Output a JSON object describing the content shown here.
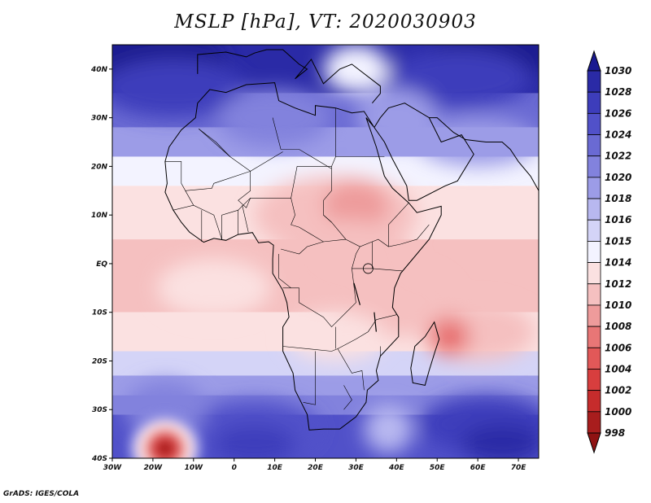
{
  "title": "MSLP [hPa], VT: 2020030903",
  "credit": "GrADS: IGES/COLA",
  "map": {
    "lon_range": [
      -30,
      75
    ],
    "lat_range": [
      -40,
      45
    ],
    "lon_ticks": [
      "30W",
      "20W",
      "10W",
      "0",
      "10E",
      "20E",
      "30E",
      "40E",
      "50E",
      "60E",
      "70E"
    ],
    "lat_ticks": [
      "40N",
      "30N",
      "20N",
      "10N",
      "EQ",
      "10S",
      "20S",
      "30S",
      "40S"
    ],
    "pressure_features": [
      {
        "name": "north-atlantic-high",
        "value": 1030,
        "lon": -20,
        "lat": 40
      },
      {
        "name": "eurasian-high",
        "value": 1030,
        "lon": 66,
        "lat": 43
      },
      {
        "name": "sahara-ridge",
        "value": 1018,
        "lon": 10,
        "lat": 28
      },
      {
        "name": "arabia-ridge",
        "value": 1018,
        "lon": 46,
        "lat": 25
      },
      {
        "name": "sudan-low",
        "value": 1008,
        "lon": 30,
        "lat": 11
      },
      {
        "name": "central-africa-trough",
        "value": 1010,
        "lon": 25,
        "lat": 0
      },
      {
        "name": "mozambique-channel-low",
        "value": 1006,
        "lon": 53,
        "lat": -15
      },
      {
        "name": "south-atlantic-low",
        "value": 998,
        "lon": -17,
        "lat": -38
      },
      {
        "name": "south-atlantic-high",
        "value": 1024,
        "lon": 5,
        "lat": -37
      },
      {
        "name": "south-indian-high",
        "value": 1026,
        "lon": 65,
        "lat": -36
      }
    ]
  },
  "colorbar": {
    "labels": [
      "1030",
      "1028",
      "1026",
      "1024",
      "1022",
      "1020",
      "1018",
      "1016",
      "1015",
      "1014",
      "1012",
      "1010",
      "1008",
      "1006",
      "1004",
      "1002",
      "1000",
      "998"
    ],
    "colors": [
      "#1a1a90",
      "#2a2aa6",
      "#3d3dbb",
      "#5151c9",
      "#6a6ad3",
      "#8282dd",
      "#9c9ce7",
      "#b8b8f0",
      "#d4d4f7",
      "#f3f3ff",
      "#fbe1e1",
      "#f5c0c0",
      "#ee9b9b",
      "#e87676",
      "#e25858",
      "#d83e3e",
      "#c62c2c",
      "#a81d1d",
      "#8f1212"
    ]
  }
}
